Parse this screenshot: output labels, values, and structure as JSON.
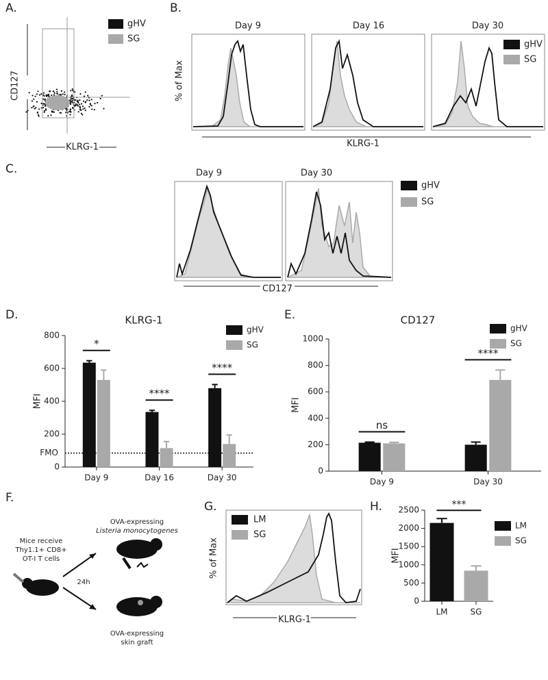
{
  "panels": {
    "A": {
      "label": "A.",
      "y_label": "CD127",
      "x_label": "KLRG-1",
      "legend": [
        "gHV",
        "SG"
      ]
    },
    "B": {
      "label": "B.",
      "titles": [
        "Day 9",
        "Day 16",
        "Day 30"
      ],
      "y_label": "% of Max",
      "x_label": "KLRG-1",
      "legend": [
        "gHV",
        "SG"
      ]
    },
    "C": {
      "label": "C.",
      "titles": [
        "Day 9",
        "Day 30"
      ],
      "x_label": "CD127",
      "legend": [
        "gHV",
        "SG"
      ]
    },
    "F": {
      "label": "F.",
      "donor": [
        "Mice receive",
        "Thy1.1+ CD8+",
        "OT-I T cells"
      ],
      "time": "24h",
      "top": [
        "OVA-expressing",
        "Listeria monocytogenes"
      ],
      "bottom": [
        "OVA-expressing",
        "skin graft"
      ]
    },
    "G": {
      "label": "G.",
      "y_label": "% of Max",
      "x_label": "KLRG-1",
      "legend": [
        "LM",
        "SG"
      ]
    }
  },
  "chart_data": [
    {
      "type": "bar",
      "panel": "D.",
      "title": "KLRG-1",
      "y_label": "MFI",
      "categories": [
        "Day 9",
        "Day 16",
        "Day 30"
      ],
      "series": [
        {
          "name": "gHV",
          "color": "#111111",
          "values": [
            635,
            335,
            480
          ],
          "errors": [
            12,
            10,
            22
          ]
        },
        {
          "name": "SG",
          "color": "#a9a9a9",
          "values": [
            530,
            115,
            140
          ],
          "errors": [
            60,
            40,
            55
          ]
        }
      ],
      "ylim": [
        0,
        800
      ],
      "yticks": [
        0,
        200,
        400,
        600,
        800
      ],
      "reference_line": {
        "label": "FMO",
        "value": 85
      },
      "significance": [
        "*",
        "****",
        "****"
      ]
    },
    {
      "type": "bar",
      "panel": "E.",
      "title": "CD127",
      "y_label": "MFI",
      "categories": [
        "Day 9",
        "Day 30"
      ],
      "series": [
        {
          "name": "gHV",
          "color": "#111111",
          "values": [
            215,
            200
          ],
          "errors": [
            5,
            20
          ]
        },
        {
          "name": "SG",
          "color": "#a9a9a9",
          "values": [
            210,
            690
          ],
          "errors": [
            8,
            75
          ]
        }
      ],
      "ylim": [
        0,
        1000
      ],
      "yticks": [
        0,
        200,
        400,
        600,
        800,
        1000
      ],
      "significance": [
        "ns",
        "****"
      ]
    },
    {
      "type": "bar",
      "panel": "H.",
      "y_label": "MFI",
      "categories": [
        "LM",
        "SG"
      ],
      "series": [
        {
          "name": "LM",
          "color": "#111111",
          "values": [
            2150,
            null
          ],
          "errors": [
            120,
            null
          ]
        },
        {
          "name": "SG",
          "color": "#a9a9a9",
          "values": [
            null,
            840
          ],
          "errors": [
            null,
            130
          ]
        }
      ],
      "ylim": [
        0,
        2500
      ],
      "yticks": [
        0,
        500,
        1000,
        1500,
        2000,
        2500
      ],
      "significance_all": "***"
    }
  ]
}
